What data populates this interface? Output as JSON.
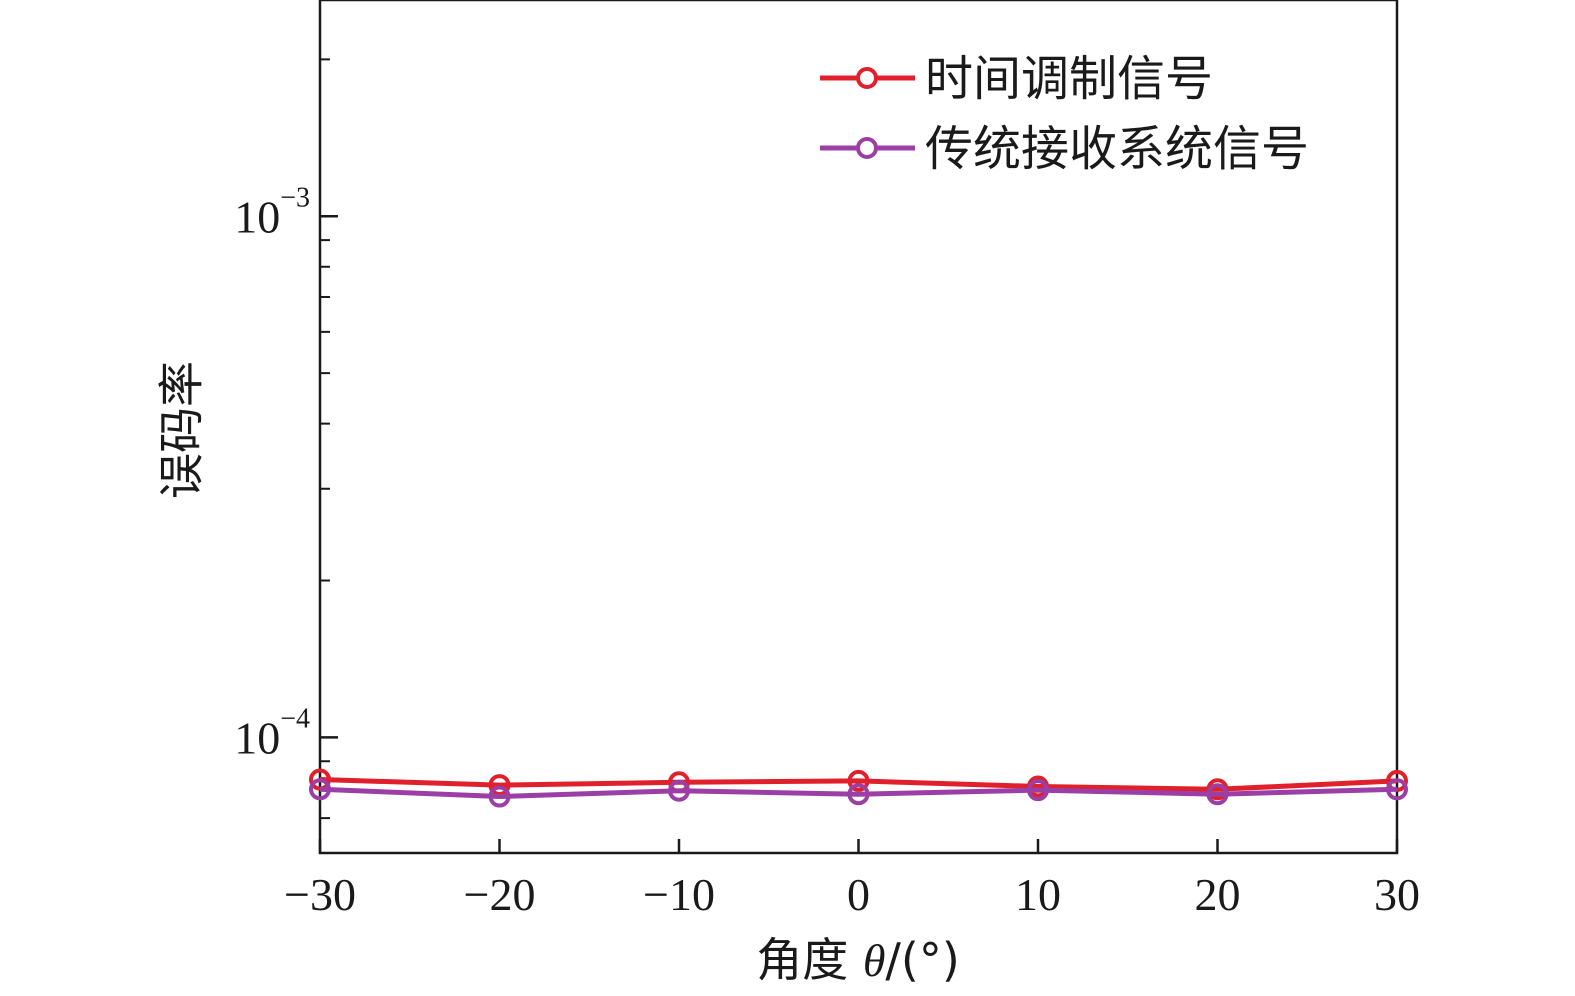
{
  "chart_data": {
    "type": "line",
    "x": [
      -30,
      -20,
      -10,
      0,
      10,
      20,
      30
    ],
    "xlabel": {
      "prefix": "角度 ",
      "symbol": "θ",
      "suffix": "/(°)"
    },
    "ylabel": "误码率",
    "xlim": [
      -30,
      30
    ],
    "ylim": [
      6e-05,
      0.0026
    ],
    "yscale": "log",
    "xticks": [
      {
        "value": -30,
        "label": "−30"
      },
      {
        "value": -20,
        "label": "−20"
      },
      {
        "value": -10,
        "label": "−10"
      },
      {
        "value": 0,
        "label": "0"
      },
      {
        "value": 10,
        "label": "10"
      },
      {
        "value": 20,
        "label": "20"
      },
      {
        "value": 30,
        "label": "30"
      }
    ],
    "yticks": [
      {
        "value": 0.0001,
        "base": "10",
        "exp": "−4"
      },
      {
        "value": 0.001,
        "base": "10",
        "exp": "−3"
      }
    ],
    "grid": false,
    "legend_position": "top-right",
    "series": [
      {
        "name": "时间调制信号",
        "color": "#e0202a",
        "values": [
          8.3e-05,
          8.1e-05,
          8.2e-05,
          8.25e-05,
          8.05e-05,
          7.95e-05,
          8.25e-05
        ]
      },
      {
        "name": "传统接收系统信号",
        "color": "#9b3fa6",
        "values": [
          7.95e-05,
          7.7e-05,
          7.9e-05,
          7.78e-05,
          7.92e-05,
          7.78e-05,
          7.95e-05
        ]
      }
    ]
  }
}
